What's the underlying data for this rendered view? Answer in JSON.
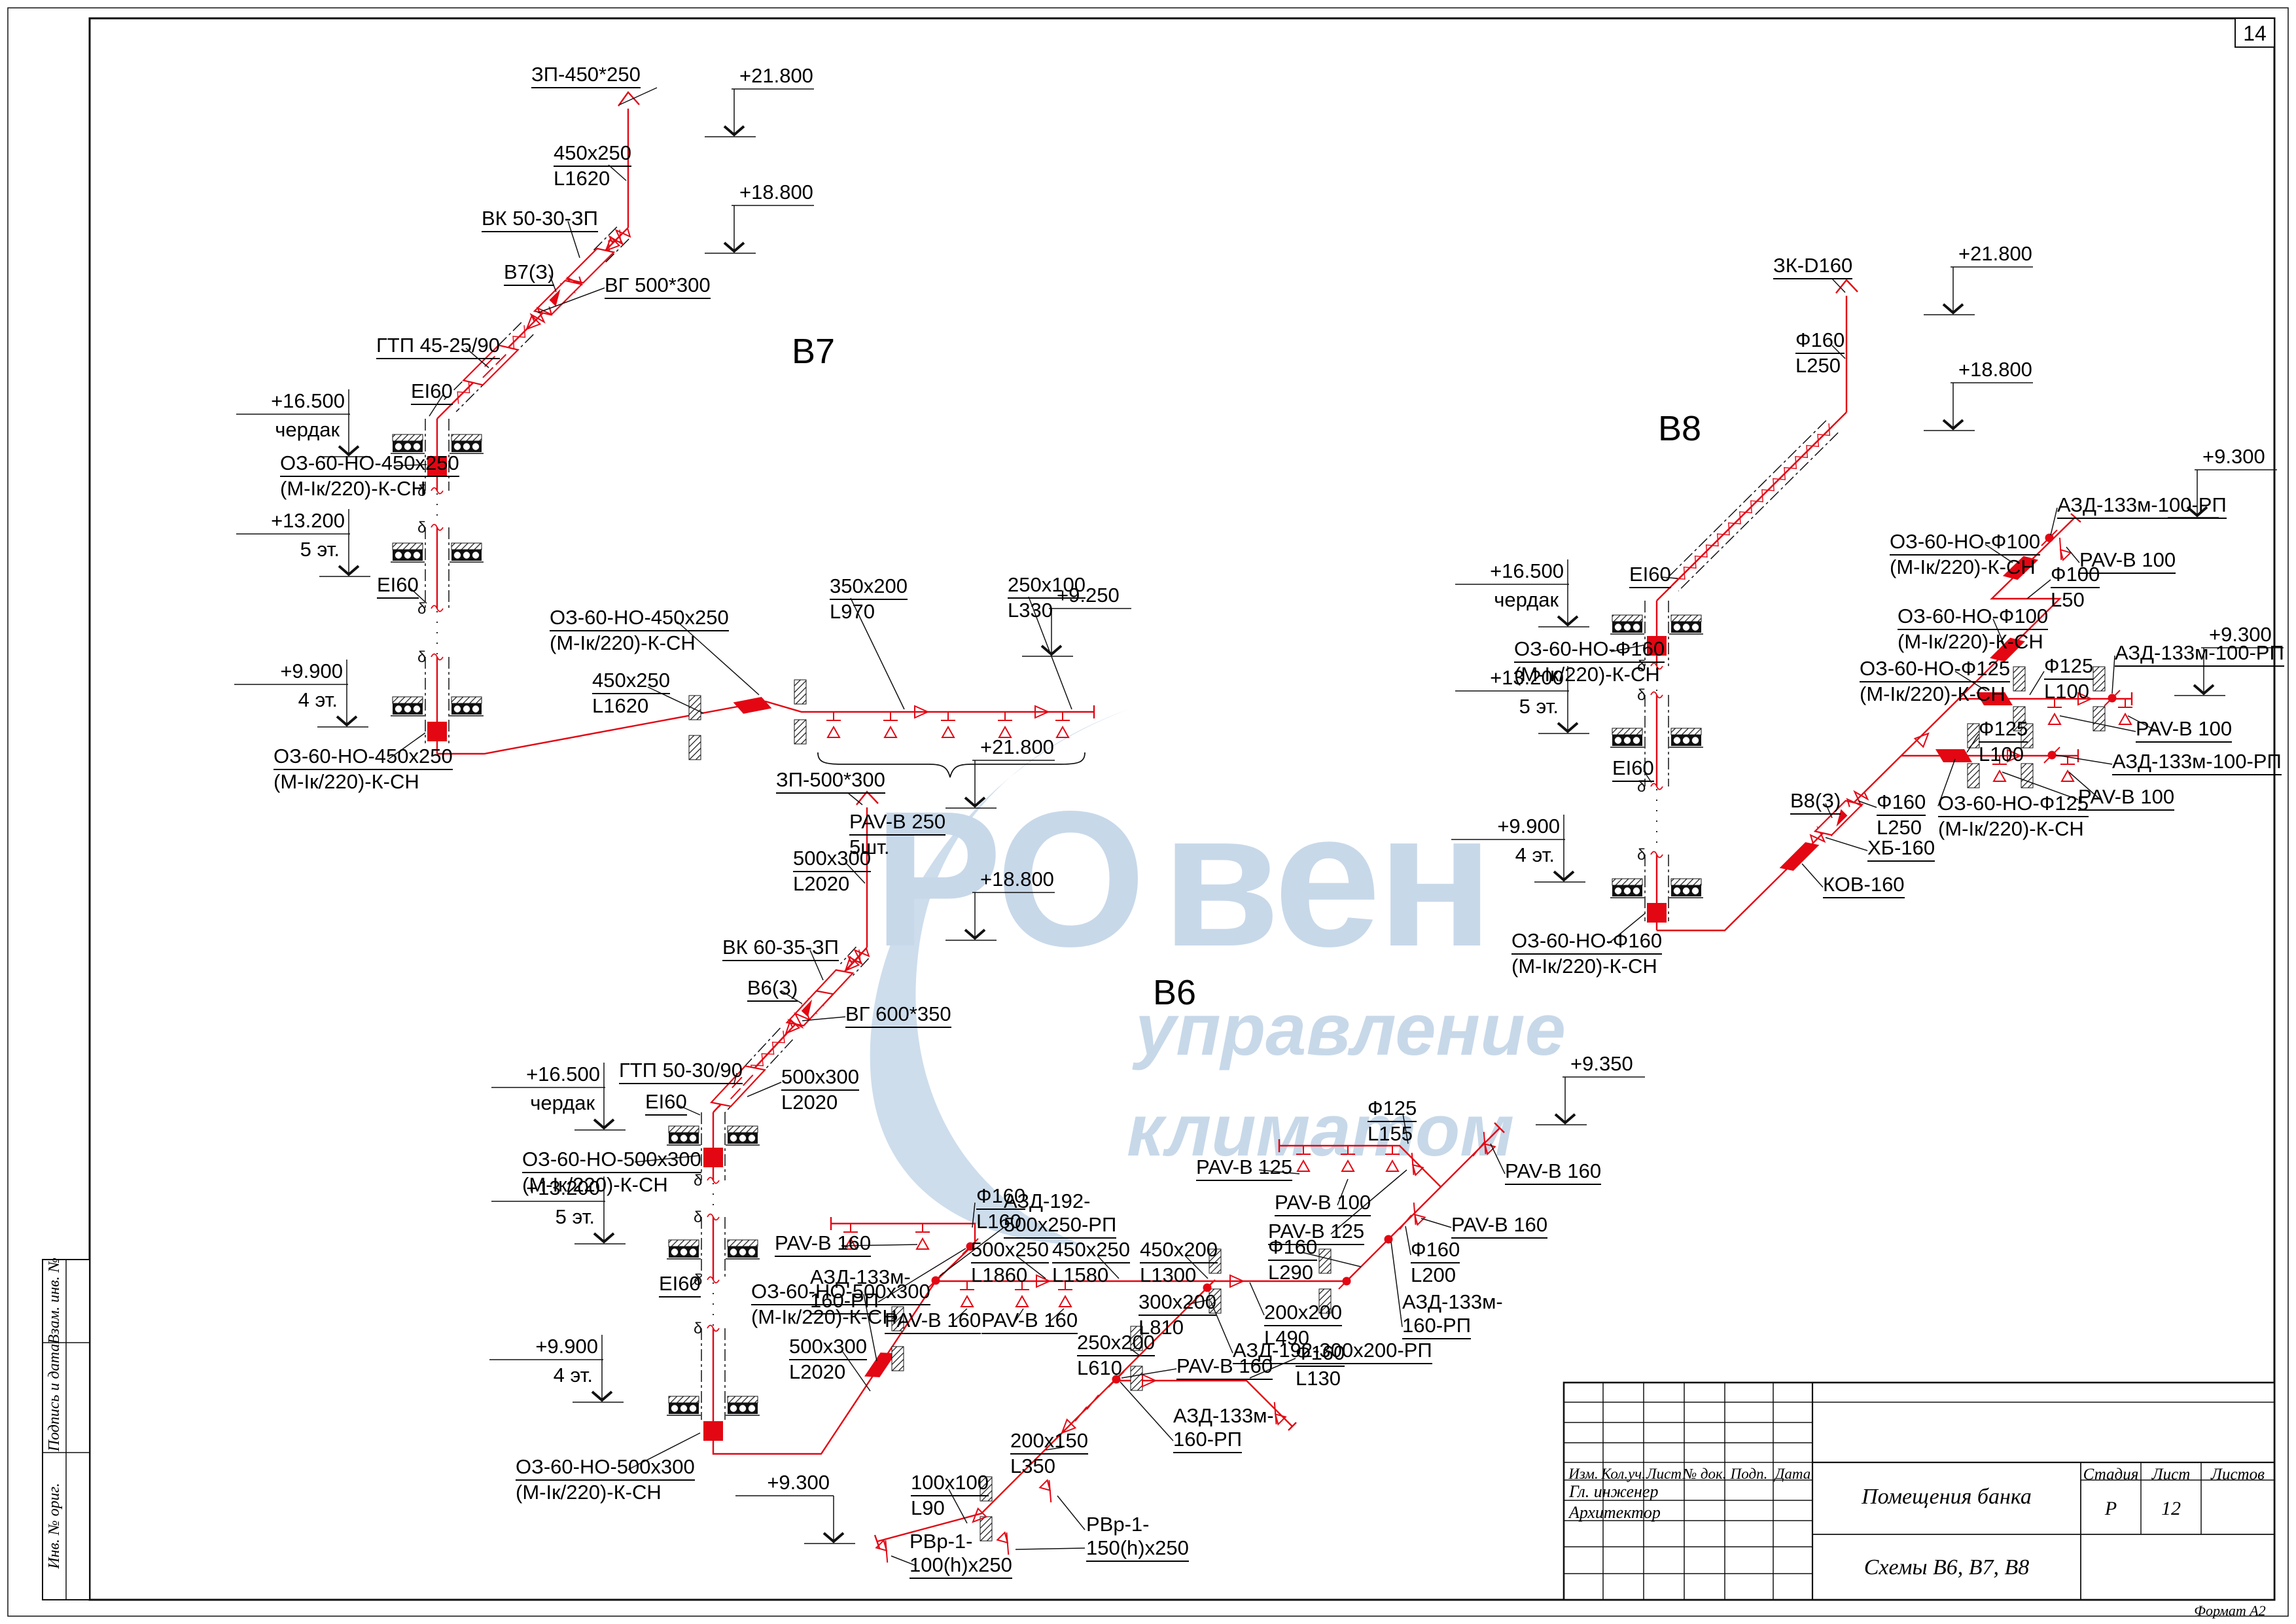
{
  "page": {
    "sheet_number": "14",
    "format_note": "Формат А2"
  },
  "side_stamp": {
    "c1": "Взам. инв. №",
    "c2": "Подпись и дата",
    "c3": "Инв. № ориг."
  },
  "title_block": {
    "c1": "Изм.",
    "c2": "Кол.уч.",
    "c3": "Лист",
    "c4": "№ док.",
    "c5": "Подп.",
    "c6": "Дата",
    "role1": "Гл. инженер",
    "role2": "Архитектор",
    "project": "Помещения банка",
    "drawing": "Схемы В6, В7, В8",
    "stage_label": "Стадия",
    "sheet_label": "Лист",
    "sheets_label": "Листов",
    "stage": "Р",
    "sheet": "12"
  },
  "watermark": {
    "brand1": "РО",
    "brand2": "вен",
    "tag1": "управление",
    "tag2": "климатом",
    "color": "#c7d8e9"
  },
  "symbols": {
    "delta": "δ"
  },
  "colors": {
    "duct_red": "#e30613",
    "line_black": "#111111"
  },
  "labels": {
    "lvl21800": [
      "+21.800"
    ],
    "lvl18800": [
      "+18.800"
    ],
    "lvl16500": [
      "+16.500",
      "чердак"
    ],
    "lvl13200": [
      "+13.200",
      "5 эт."
    ],
    "lvl9900": [
      "+9.900",
      "4 эт."
    ],
    "lvl9250": [
      "+9.250"
    ],
    "lvl9300": [
      "+9.300"
    ],
    "lvl9350": [
      "+9.350"
    ],
    "ei60": [
      "EI60"
    ],
    "oz450": [
      "ОЗ-60-НО-450х250",
      "(М-Iк/220)-К-СН"
    ],
    "oz500": [
      "ОЗ-60-НО-500х300",
      "(М-Iк/220)-К-СН"
    ],
    "ozf100": [
      "ОЗ-60-НО-Ф100",
      "(М-Iк/220)-К-СН"
    ],
    "ozf125": [
      "ОЗ-60-НО-Ф125",
      "(М-Iк/220)-К-СН"
    ],
    "ozf160": [
      "ОЗ-60-НО-Ф160",
      "(М-Iк/220)-К-СН"
    ],
    "pav250": [
      "PAV-В 250",
      "5шт."
    ],
    "pav160": [
      "PAV-В 160"
    ],
    "pav125": [
      "PAV-В 125"
    ],
    "pav100": [
      "PAV-В 100"
    ],
    "azd133_100": [
      "АЗД-133м-100-РП"
    ],
    "azd133_160": [
      "АЗД-133м-",
      "160-РП"
    ],
    "azd192_500": [
      "АЗД-192-",
      "500х250-РП"
    ],
    "azd192_300": [
      "АЗД-192-300х200-РП"
    ],
    "v7_zp": [
      "ЗП-450*250"
    ],
    "v7_duct1": [
      "450x250",
      "L1620"
    ],
    "v7_vk": [
      "ВК 50-30-ЗП"
    ],
    "v7_valve": [
      "В7(З)"
    ],
    "v7_vg": [
      "ВГ 500*300"
    ],
    "v7_gtp": [
      "ГТП 45-25/90"
    ],
    "v7_duct2": [
      "450х250",
      "L1620"
    ],
    "v7_d350": [
      "350х200",
      "L970"
    ],
    "v7_d250": [
      "250х100",
      "L330"
    ],
    "v7_title": [
      "В7"
    ],
    "v8_zk": [
      "ЗК-D160"
    ],
    "v8_f160_250": [
      "Ф160",
      "L250"
    ],
    "v8_f100_50": [
      "Ф100",
      "L50"
    ],
    "v8_f125_100": [
      "Ф125",
      "L100"
    ],
    "v8_valve": [
      "В8(З)"
    ],
    "v8_hb": [
      "ХБ-160"
    ],
    "v8_kov": [
      "КОВ-160"
    ],
    "v8_title": [
      "В8"
    ],
    "v6_zp": [
      "ЗП-500*300"
    ],
    "v6_duct": [
      "500х300",
      "L2020"
    ],
    "v6_vk": [
      "ВК 60-35-ЗП"
    ],
    "v6_valve": [
      "В6(З)"
    ],
    "v6_vg": [
      "ВГ 600*350"
    ],
    "v6_gtp": [
      "ГТП 50-30/90"
    ],
    "v6_title": [
      "В6"
    ],
    "v6_f160_160": [
      "Ф160",
      "L160"
    ],
    "v6_d500_250": [
      "500х250",
      "L1860"
    ],
    "v6_d450_250": [
      "450х250",
      "L1580"
    ],
    "v6_d450_200": [
      "450х200",
      "L1300"
    ],
    "v6_d300_200": [
      "300х200",
      "L810"
    ],
    "v6_d200_200": [
      "200х200",
      "L490"
    ],
    "v6_d250_200": [
      "250х200",
      "L610"
    ],
    "v6_d200_150": [
      "200х150",
      "L350"
    ],
    "v6_d100_100": [
      "100х100",
      "L90"
    ],
    "v6_f125_155": [
      "Ф125",
      "L155"
    ],
    "v6_f160_290": [
      "Ф160",
      "L290"
    ],
    "v6_f160_200": [
      "Ф160",
      "L200"
    ],
    "v6_f160_130": [
      "Ф160",
      "L130"
    ],
    "v6_rvr150": [
      "РВр-1-",
      "150(h)х250"
    ],
    "v6_rvr100": [
      "РВр-1-",
      "100(h)х250"
    ]
  }
}
